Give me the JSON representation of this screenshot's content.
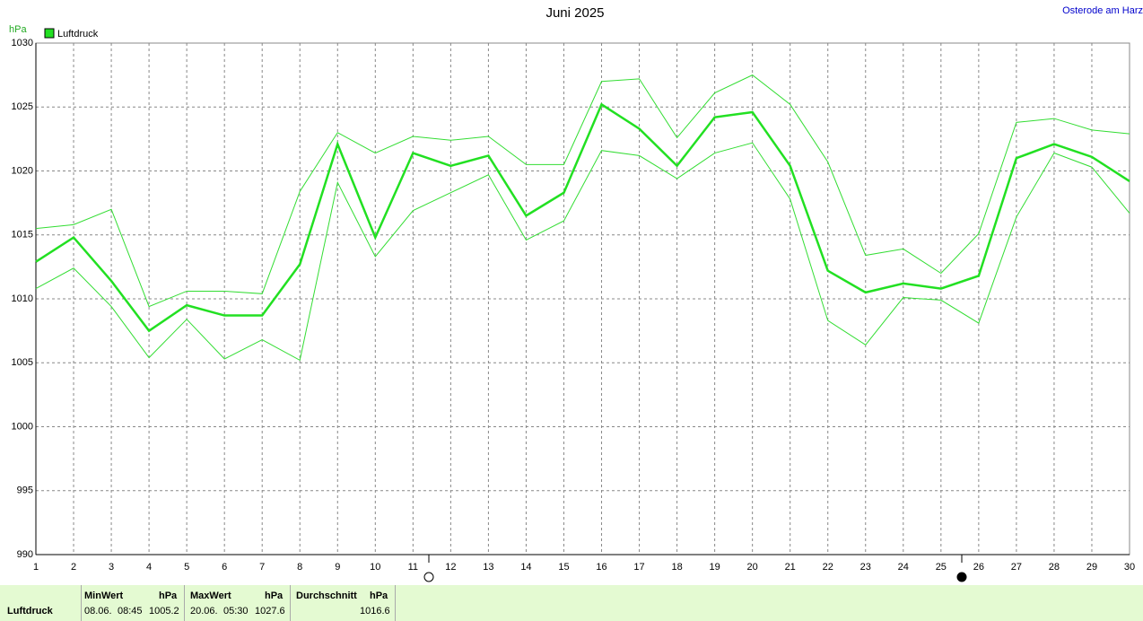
{
  "chart_data": {
    "type": "line",
    "title": "Juni 2025",
    "annotation": "Osterode am Harz",
    "ylabel": "hPa",
    "x": [
      1,
      2,
      3,
      4,
      5,
      6,
      7,
      8,
      9,
      10,
      11,
      12,
      13,
      14,
      15,
      16,
      17,
      18,
      19,
      20,
      21,
      22,
      23,
      24,
      25,
      26,
      27,
      28,
      29,
      30
    ],
    "series": [
      {
        "name": "Luftdruck",
        "color": "#22e022",
        "width": 2.5,
        "values": [
          1012.9,
          1014.8,
          1011.4,
          1007.5,
          1009.5,
          1008.7,
          1008.7,
          1012.7,
          1022.1,
          1014.8,
          1021.4,
          1020.4,
          1021.2,
          1016.5,
          1018.3,
          1025.2,
          1023.3,
          1020.4,
          1024.2,
          1024.6,
          1020.4,
          1012.2,
          1010.5,
          1011.2,
          1010.8,
          1011.8,
          1021.0,
          1022.1,
          1021.1,
          1019.2
        ]
      },
      {
        "color": "#33dd33",
        "width": 1,
        "values": [
          1015.5,
          1015.8,
          1017.0,
          1009.4,
          1010.6,
          1010.6,
          1010.4,
          1018.4,
          1023.0,
          1021.4,
          1022.7,
          1022.4,
          1022.7,
          1020.5,
          1020.5,
          1027.0,
          1027.2,
          1022.6,
          1026.1,
          1027.5,
          1025.2,
          1020.7,
          1013.4,
          1013.9,
          1012.0,
          1015.1,
          1023.8,
          1024.1,
          1023.2,
          1022.9
        ]
      },
      {
        "color": "#33dd33",
        "width": 1,
        "values": [
          1010.8,
          1012.4,
          1009.4,
          1005.4,
          1008.4,
          1005.3,
          1006.8,
          1005.2,
          1019.1,
          1013.3,
          1016.9,
          1018.3,
          1019.7,
          1014.6,
          1016.1,
          1021.6,
          1021.2,
          1019.4,
          1021.4,
          1022.2,
          1017.8,
          1008.3,
          1006.4,
          1010.1,
          1009.9,
          1008.1,
          1016.4,
          1021.4,
          1020.3,
          1016.7
        ]
      }
    ],
    "xlim": [
      1,
      30
    ],
    "xticks": [
      1,
      2,
      3,
      4,
      5,
      6,
      7,
      8,
      9,
      10,
      11,
      12,
      13,
      14,
      15,
      16,
      17,
      18,
      19,
      20,
      21,
      22,
      23,
      24,
      25,
      26,
      27,
      28,
      29,
      30
    ],
    "ylim": [
      990,
      1030
    ],
    "yticks": [
      990,
      995,
      1000,
      1005,
      1010,
      1015,
      1020,
      1025,
      1030
    ],
    "grid": true
  },
  "summary": {
    "row_label": "Luftdruck",
    "min": {
      "header": "MinWert",
      "unit": "hPa",
      "date": "08.06.",
      "time": "08:45",
      "value": 1005.2
    },
    "max": {
      "header": "MaxWert",
      "unit": "hPa",
      "date": "20.06.",
      "time": "05:30",
      "value": 1027.6
    },
    "avg": {
      "header": "Durchschnitt",
      "unit": "hPa",
      "value": 1016.6
    }
  }
}
